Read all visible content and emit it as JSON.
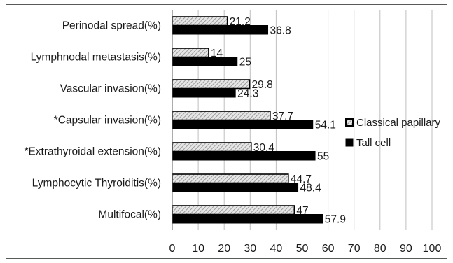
{
  "chart_data": {
    "type": "bar",
    "orientation": "horizontal",
    "categories": [
      "Perinodal spread(%)",
      "Lymphnodal metastasis(%)",
      "Vascular invasion(%)",
      "*Capsular invasion(%)",
      "*Extrathyroidal extension(%)",
      "Lymphocytic Thyroiditis(%)",
      "Multifocal(%)"
    ],
    "series": [
      {
        "name": "Classical papillary",
        "values": [
          21.2,
          14,
          29.8,
          37.7,
          30.4,
          44.7,
          47
        ],
        "labels": [
          "21.2",
          "14",
          "29.8",
          "37.7",
          "30.4",
          "44.7",
          "47"
        ],
        "color": "#c8c8c8",
        "pattern": "hatched"
      },
      {
        "name": "Tall cell",
        "values": [
          36.8,
          25,
          24.3,
          54.1,
          55,
          48.4,
          57.9
        ],
        "labels": [
          "36.8",
          "25",
          "24.3",
          "54.1",
          "55",
          "48.4",
          "57.9"
        ],
        "color": "#000000",
        "pattern": "solid"
      }
    ],
    "xlim": [
      0,
      100
    ],
    "xticks": [
      0,
      10,
      20,
      30,
      40,
      50,
      60,
      70,
      80,
      90,
      100
    ],
    "grid": "vertical",
    "legend": "right",
    "title": "",
    "xlabel": "",
    "ylabel": ""
  }
}
